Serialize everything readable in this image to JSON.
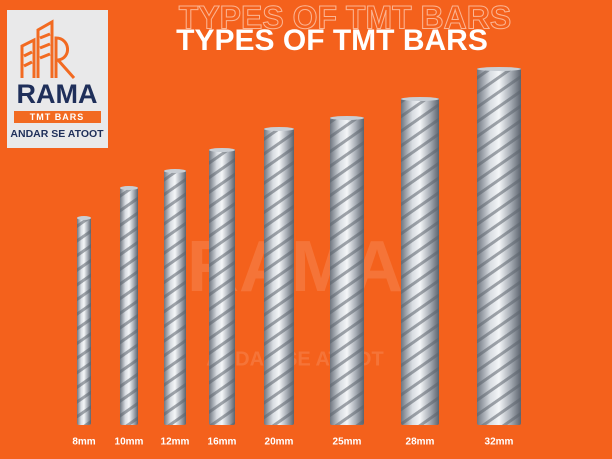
{
  "title": "TYPES OF TMT BARS",
  "logo": {
    "brand": "RAMA",
    "product": "TMT BARS",
    "tagline": "ANDAR SE ATOOT"
  },
  "watermark": {
    "brand": "RAMA",
    "tagline": "ANDAR SE ATOOT"
  },
  "bars": [
    "8mm",
    "10mm",
    "12mm",
    "16mm",
    "20mm",
    "25mm",
    "28mm",
    "32mm"
  ]
}
